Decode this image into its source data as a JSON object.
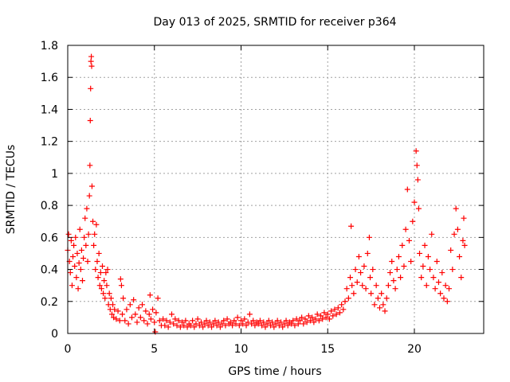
{
  "chart_data": {
    "type": "scatter",
    "title": "Day 013 of 2025, SRMTID for receiver p364",
    "xlabel": "GPS time / hours",
    "ylabel": "SRMTID / TECUs",
    "xlim": [
      0,
      24
    ],
    "ylim": [
      0,
      1.8
    ],
    "x_ticks": [
      0,
      5,
      10,
      15,
      20
    ],
    "x_tick_labels": [
      "0",
      "5",
      "10",
      "15",
      "20"
    ],
    "y_ticks": [
      0,
      0.2,
      0.4,
      0.6,
      0.8,
      1.0,
      1.2,
      1.4,
      1.6,
      1.8
    ],
    "y_tick_labels": [
      "0",
      "0.2",
      "0.4",
      "0.6",
      "0.8",
      "1",
      "1.2",
      "1.4",
      "1.6",
      "1.8"
    ],
    "grid": true,
    "marker": "+",
    "color": "#ff0000",
    "series": [
      {
        "name": "SRMTID",
        "points": [
          [
            0.0,
            0.52
          ],
          [
            0.05,
            0.62
          ],
          [
            0.1,
            0.45
          ],
          [
            0.15,
            0.38
          ],
          [
            0.2,
            0.58
          ],
          [
            0.25,
            0.3
          ],
          [
            0.3,
            0.48
          ],
          [
            0.35,
            0.55
          ],
          [
            0.4,
            0.42
          ],
          [
            0.45,
            0.6
          ],
          [
            0.5,
            0.35
          ],
          [
            0.55,
            0.5
          ],
          [
            0.6,
            0.28
          ],
          [
            0.65,
            0.44
          ],
          [
            0.7,
            0.65
          ],
          [
            0.75,
            0.4
          ],
          [
            0.8,
            0.52
          ],
          [
            0.85,
            0.33
          ],
          [
            0.9,
            0.47
          ],
          [
            0.95,
            0.6
          ],
          [
            1.0,
            0.72
          ],
          [
            1.05,
            0.55
          ],
          [
            1.1,
            0.78
          ],
          [
            1.15,
            0.45
          ],
          [
            1.2,
            0.62
          ],
          [
            1.25,
            0.86
          ],
          [
            1.28,
            1.05
          ],
          [
            1.3,
            1.33
          ],
          [
            1.32,
            1.53
          ],
          [
            1.34,
            1.7
          ],
          [
            1.36,
            1.73
          ],
          [
            1.38,
            1.67
          ],
          [
            1.4,
            0.92
          ],
          [
            1.45,
            0.7
          ],
          [
            1.5,
            0.55
          ],
          [
            1.55,
            0.62
          ],
          [
            1.6,
            0.4
          ],
          [
            1.65,
            0.68
          ],
          [
            1.7,
            0.45
          ],
          [
            1.75,
            0.35
          ],
          [
            1.8,
            0.5
          ],
          [
            1.85,
            0.3
          ],
          [
            1.9,
            0.38
          ],
          [
            1.95,
            0.28
          ],
          [
            2.0,
            0.42
          ],
          [
            2.05,
            0.25
          ],
          [
            2.1,
            0.33
          ],
          [
            2.15,
            0.22
          ],
          [
            2.2,
            0.38
          ],
          [
            2.25,
            0.3
          ],
          [
            2.3,
            0.4
          ],
          [
            2.35,
            0.18
          ],
          [
            2.4,
            0.25
          ],
          [
            2.45,
            0.15
          ],
          [
            2.5,
            0.22
          ],
          [
            2.55,
            0.12
          ],
          [
            2.6,
            0.18
          ],
          [
            2.65,
            0.1
          ],
          [
            2.7,
            0.15
          ],
          [
            2.8,
            0.09
          ],
          [
            2.9,
            0.14
          ],
          [
            3.0,
            0.08
          ],
          [
            3.05,
            0.34
          ],
          [
            3.1,
            0.3
          ],
          [
            3.15,
            0.12
          ],
          [
            3.2,
            0.22
          ],
          [
            3.3,
            0.08
          ],
          [
            3.4,
            0.15
          ],
          [
            3.5,
            0.06
          ],
          [
            3.6,
            0.18
          ],
          [
            3.7,
            0.1
          ],
          [
            3.8,
            0.21
          ],
          [
            3.9,
            0.12
          ],
          [
            4.0,
            0.07
          ],
          [
            4.1,
            0.16
          ],
          [
            4.2,
            0.1
          ],
          [
            4.3,
            0.18
          ],
          [
            4.4,
            0.08
          ],
          [
            4.5,
            0.14
          ],
          [
            4.6,
            0.06
          ],
          [
            4.7,
            0.12
          ],
          [
            4.75,
            0.24
          ],
          [
            4.8,
            0.09
          ],
          [
            4.9,
            0.15
          ],
          [
            5.0,
            0.07
          ],
          [
            5.05,
            0.01
          ],
          [
            5.1,
            0.13
          ],
          [
            5.2,
            0.22
          ],
          [
            5.3,
            0.08
          ],
          [
            5.4,
            0.05
          ],
          [
            5.5,
            0.09
          ],
          [
            5.6,
            0.05
          ],
          [
            5.7,
            0.08
          ],
          [
            5.8,
            0.04
          ],
          [
            5.9,
            0.07
          ],
          [
            6.0,
            0.12
          ],
          [
            6.1,
            0.06
          ],
          [
            6.2,
            0.09
          ],
          [
            6.3,
            0.05
          ],
          [
            6.4,
            0.08
          ],
          [
            6.5,
            0.04
          ],
          [
            6.6,
            0.07
          ],
          [
            6.7,
            0.05
          ],
          [
            6.8,
            0.08
          ],
          [
            6.9,
            0.04
          ],
          [
            7.0,
            0.06
          ],
          [
            7.1,
            0.05
          ],
          [
            7.2,
            0.08
          ],
          [
            7.3,
            0.04
          ],
          [
            7.4,
            0.06
          ],
          [
            7.5,
            0.09
          ],
          [
            7.6,
            0.05
          ],
          [
            7.7,
            0.07
          ],
          [
            7.8,
            0.04
          ],
          [
            7.9,
            0.06
          ],
          [
            8.0,
            0.08
          ],
          [
            8.1,
            0.05
          ],
          [
            8.2,
            0.07
          ],
          [
            8.3,
            0.04
          ],
          [
            8.4,
            0.06
          ],
          [
            8.5,
            0.08
          ],
          [
            8.6,
            0.05
          ],
          [
            8.7,
            0.07
          ],
          [
            8.8,
            0.04
          ],
          [
            8.9,
            0.06
          ],
          [
            9.0,
            0.08
          ],
          [
            9.1,
            0.05
          ],
          [
            9.2,
            0.09
          ],
          [
            9.3,
            0.06
          ],
          [
            9.4,
            0.07
          ],
          [
            9.5,
            0.05
          ],
          [
            9.6,
            0.08
          ],
          [
            9.7,
            0.06
          ],
          [
            9.8,
            0.1
          ],
          [
            9.9,
            0.05
          ],
          [
            10.0,
            0.08
          ],
          [
            10.1,
            0.06
          ],
          [
            10.2,
            0.09
          ],
          [
            10.3,
            0.05
          ],
          [
            10.4,
            0.07
          ],
          [
            10.5,
            0.12
          ],
          [
            10.6,
            0.06
          ],
          [
            10.7,
            0.08
          ],
          [
            10.8,
            0.05
          ],
          [
            10.9,
            0.07
          ],
          [
            11.0,
            0.06
          ],
          [
            11.1,
            0.08
          ],
          [
            11.2,
            0.05
          ],
          [
            11.3,
            0.07
          ],
          [
            11.4,
            0.04
          ],
          [
            11.5,
            0.06
          ],
          [
            11.6,
            0.08
          ],
          [
            11.7,
            0.05
          ],
          [
            11.8,
            0.07
          ],
          [
            11.9,
            0.04
          ],
          [
            12.0,
            0.06
          ],
          [
            12.1,
            0.08
          ],
          [
            12.2,
            0.05
          ],
          [
            12.3,
            0.07
          ],
          [
            12.4,
            0.04
          ],
          [
            12.5,
            0.06
          ],
          [
            12.6,
            0.08
          ],
          [
            12.7,
            0.05
          ],
          [
            12.8,
            0.07
          ],
          [
            12.9,
            0.06
          ],
          [
            13.0,
            0.08
          ],
          [
            13.1,
            0.05
          ],
          [
            13.2,
            0.09
          ],
          [
            13.3,
            0.06
          ],
          [
            13.4,
            0.08
          ],
          [
            13.5,
            0.1
          ],
          [
            13.6,
            0.06
          ],
          [
            13.7,
            0.09
          ],
          [
            13.8,
            0.07
          ],
          [
            13.9,
            0.11
          ],
          [
            14.0,
            0.08
          ],
          [
            14.1,
            0.1
          ],
          [
            14.2,
            0.07
          ],
          [
            14.3,
            0.09
          ],
          [
            14.4,
            0.12
          ],
          [
            14.5,
            0.08
          ],
          [
            14.6,
            0.11
          ],
          [
            14.7,
            0.09
          ],
          [
            14.8,
            0.13
          ],
          [
            14.9,
            0.1
          ],
          [
            15.0,
            0.12
          ],
          [
            15.1,
            0.09
          ],
          [
            15.2,
            0.14
          ],
          [
            15.3,
            0.11
          ],
          [
            15.4,
            0.15
          ],
          [
            15.5,
            0.12
          ],
          [
            15.6,
            0.16
          ],
          [
            15.7,
            0.13
          ],
          [
            15.8,
            0.18
          ],
          [
            15.9,
            0.15
          ],
          [
            16.0,
            0.2
          ],
          [
            16.1,
            0.28
          ],
          [
            16.2,
            0.22
          ],
          [
            16.3,
            0.35
          ],
          [
            16.35,
            0.67
          ],
          [
            16.4,
            0.3
          ],
          [
            16.5,
            0.25
          ],
          [
            16.6,
            0.4
          ],
          [
            16.7,
            0.32
          ],
          [
            16.8,
            0.48
          ],
          [
            16.9,
            0.38
          ],
          [
            17.0,
            0.3
          ],
          [
            17.1,
            0.42
          ],
          [
            17.2,
            0.28
          ],
          [
            17.3,
            0.5
          ],
          [
            17.4,
            0.6
          ],
          [
            17.45,
            0.35
          ],
          [
            17.5,
            0.25
          ],
          [
            17.6,
            0.4
          ],
          [
            17.7,
            0.18
          ],
          [
            17.8,
            0.3
          ],
          [
            17.9,
            0.22
          ],
          [
            18.0,
            0.16
          ],
          [
            18.1,
            0.25
          ],
          [
            18.2,
            0.18
          ],
          [
            18.3,
            0.14
          ],
          [
            18.4,
            0.22
          ],
          [
            18.5,
            0.3
          ],
          [
            18.6,
            0.38
          ],
          [
            18.7,
            0.45
          ],
          [
            18.8,
            0.33
          ],
          [
            18.9,
            0.28
          ],
          [
            19.0,
            0.4
          ],
          [
            19.1,
            0.48
          ],
          [
            19.2,
            0.35
          ],
          [
            19.3,
            0.55
          ],
          [
            19.4,
            0.42
          ],
          [
            19.5,
            0.65
          ],
          [
            19.6,
            0.9
          ],
          [
            19.7,
            0.58
          ],
          [
            19.8,
            0.45
          ],
          [
            19.9,
            0.7
          ],
          [
            20.0,
            0.82
          ],
          [
            20.1,
            1.14
          ],
          [
            20.15,
            1.05
          ],
          [
            20.2,
            0.96
          ],
          [
            20.25,
            0.78
          ],
          [
            20.3,
            0.5
          ],
          [
            20.4,
            0.35
          ],
          [
            20.5,
            0.42
          ],
          [
            20.6,
            0.55
          ],
          [
            20.7,
            0.3
          ],
          [
            20.8,
            0.48
          ],
          [
            20.9,
            0.4
          ],
          [
            21.0,
            0.62
          ],
          [
            21.1,
            0.35
          ],
          [
            21.2,
            0.28
          ],
          [
            21.3,
            0.45
          ],
          [
            21.4,
            0.32
          ],
          [
            21.5,
            0.25
          ],
          [
            21.6,
            0.38
          ],
          [
            21.7,
            0.22
          ],
          [
            21.8,
            0.3
          ],
          [
            21.9,
            0.2
          ],
          [
            22.0,
            0.28
          ],
          [
            22.1,
            0.52
          ],
          [
            22.2,
            0.4
          ],
          [
            22.3,
            0.62
          ],
          [
            22.4,
            0.78
          ],
          [
            22.5,
            0.65
          ],
          [
            22.6,
            0.48
          ],
          [
            22.7,
            0.35
          ],
          [
            22.8,
            0.58
          ],
          [
            22.85,
            0.72
          ],
          [
            22.9,
            0.55
          ]
        ]
      }
    ]
  }
}
